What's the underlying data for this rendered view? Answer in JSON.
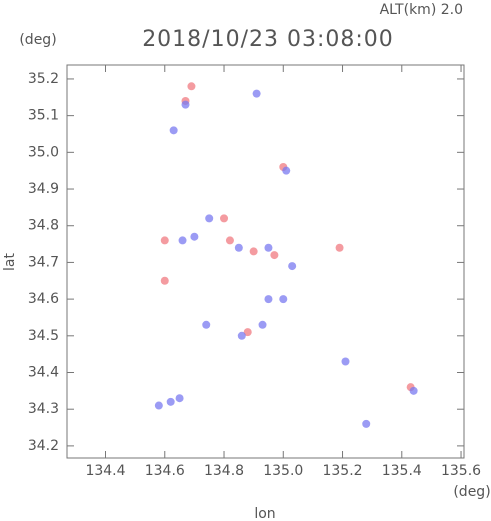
{
  "chart_data": {
    "type": "scatter",
    "title": "2018/10/23 03:08:00",
    "subtitle": "ALT(km) 2.0",
    "x_label": "lon",
    "y_label": "lat",
    "x_unit": "(deg)",
    "y_unit": "(deg)",
    "xlim": [
      134.27,
      135.61
    ],
    "ylim": [
      34.167,
      35.238
    ],
    "xticks": [
      134.4,
      134.6,
      134.8,
      {
        "value": 135,
        "label": "135.0"
      },
      135.2,
      135.4,
      135.6
    ],
    "yticks": [
      34.2,
      34.3,
      34.4,
      34.5,
      34.6,
      34.7,
      34.8,
      34.9,
      {
        "value": 35,
        "label": "35.0"
      },
      35.1,
      35.2
    ],
    "series": [
      {
        "color": "#f07a80",
        "x": [
          134.69,
          134.67,
          134.8,
          134.82,
          134.6,
          134.6,
          134.88,
          135.0,
          134.97,
          135.19,
          134.9,
          135.43
        ],
        "values": [
          35.18,
          35.14,
          34.82,
          34.76,
          34.76,
          34.65,
          34.51,
          34.96,
          34.72,
          34.74,
          34.73,
          34.36
        ]
      },
      {
        "color": "#7a7af0",
        "x": [
          134.67,
          134.58,
          134.62,
          134.65,
          134.75,
          134.7,
          134.66,
          134.85,
          134.95,
          135.03,
          135.0,
          134.95,
          134.86,
          134.93,
          135.21,
          135.28,
          135.44,
          135.01,
          134.74,
          134.91,
          134.63
        ],
        "values": [
          35.13,
          34.31,
          34.32,
          34.33,
          34.82,
          34.77,
          34.76,
          34.74,
          34.74,
          34.69,
          34.6,
          34.6,
          34.5,
          34.53,
          34.43,
          34.26,
          34.35,
          34.95,
          34.53,
          35.16,
          35.06
        ]
      }
    ]
  }
}
